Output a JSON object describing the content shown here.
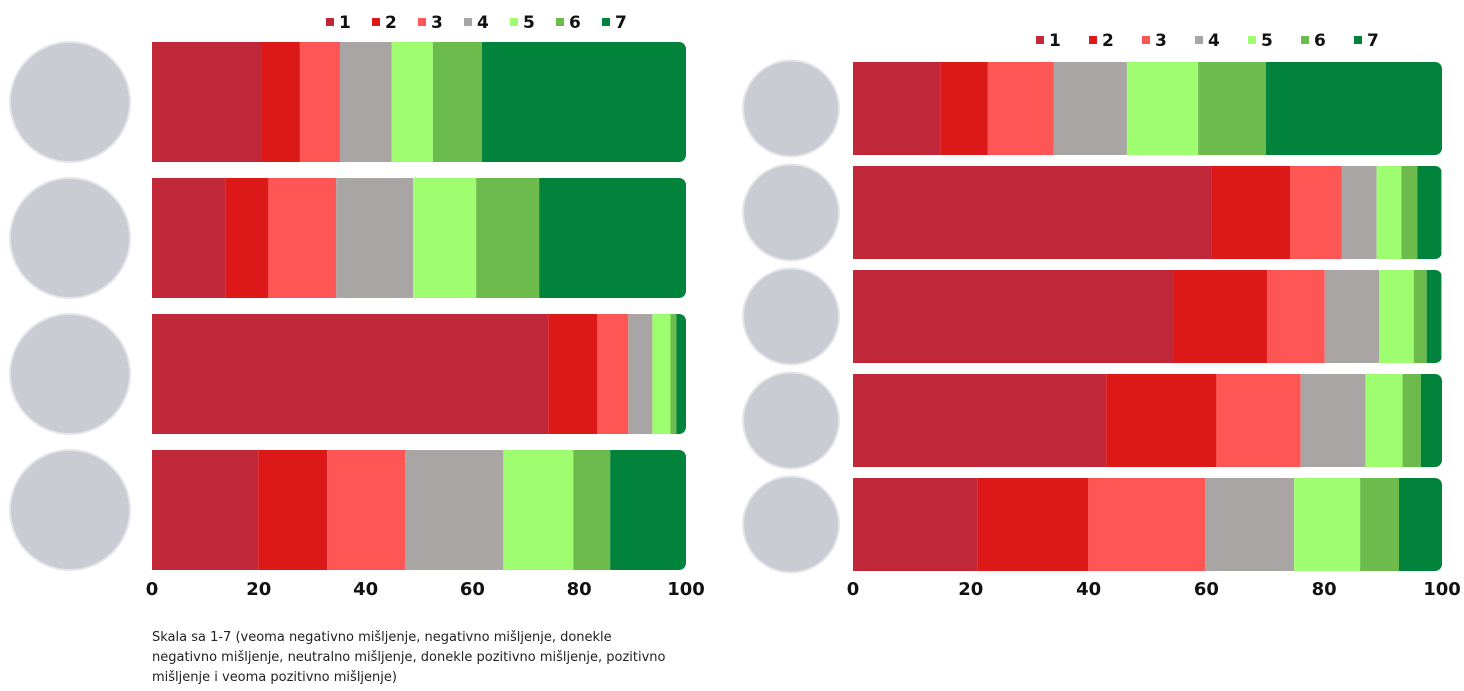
{
  "chart_data": [
    {
      "type": "stacked-barh",
      "categories": [
        null,
        null,
        null,
        null
      ],
      "series": [
        {
          "name": "1",
          "color": "#c0283a",
          "values": [
            20.6,
            13.7,
            74.2,
            19.9
          ]
        },
        {
          "name": "2",
          "color": "#dc1818",
          "values": [
            7.1,
            8.1,
            9.2,
            12.9
          ]
        },
        {
          "name": "3",
          "color": "#fe5555",
          "values": [
            7.5,
            12.7,
            5.8,
            14.6
          ]
        },
        {
          "name": "4",
          "color": "#a8a5a4",
          "values": [
            9.7,
            14.4,
            4.5,
            18.4
          ]
        },
        {
          "name": "5",
          "color": "#9ffe6f",
          "values": [
            7.7,
            11.8,
            3.4,
            13.1
          ]
        },
        {
          "name": "6",
          "color": "#6dbb4c",
          "values": [
            9.2,
            11.8,
            1.1,
            6.9
          ]
        },
        {
          "name": "7",
          "color": "#02833b",
          "values": [
            38.2,
            27.5,
            1.9,
            14.2
          ]
        }
      ],
      "xlim": [
        0,
        100
      ],
      "xticks": [
        0,
        20,
        40,
        60,
        80,
        100
      ],
      "note": "Skala sa 1-7 (veoma negativno mišljenje, negativno mišljenje, donekle negativno mišljenje, neutralno mišljenje, donekle pozitivno mišljenje, pozitivno mišljenje i veoma pozitivno mišljenje)"
    },
    {
      "type": "stacked-barh",
      "categories": [
        null,
        null,
        null,
        null,
        null
      ],
      "series": [
        {
          "name": "1",
          "color": "#c0283a",
          "values": [
            14.8,
            60.8,
            54.5,
            43.0,
            21.2
          ]
        },
        {
          "name": "2",
          "color": "#dc1818",
          "values": [
            8.1,
            13.4,
            15.8,
            18.7,
            18.7
          ]
        },
        {
          "name": "3",
          "color": "#fe5555",
          "values": [
            11.2,
            8.8,
            9.8,
            14.3,
            19.9
          ]
        },
        {
          "name": "4",
          "color": "#a8a5a4",
          "values": [
            12.4,
            5.9,
            9.2,
            11.0,
            15.1
          ]
        },
        {
          "name": "5",
          "color": "#9ffe6f",
          "values": [
            12.1,
            4.2,
            5.9,
            6.3,
            11.2
          ]
        },
        {
          "name": "6",
          "color": "#6dbb4c",
          "values": [
            11.5,
            2.7,
            2.2,
            3.1,
            6.6
          ]
        },
        {
          "name": "7",
          "color": "#02833b",
          "values": [
            29.9,
            4.1,
            2.5,
            3.7,
            7.3
          ]
        }
      ],
      "xlim": [
        0,
        100
      ],
      "xticks": [
        0,
        20,
        40,
        60,
        80,
        100
      ]
    }
  ]
}
